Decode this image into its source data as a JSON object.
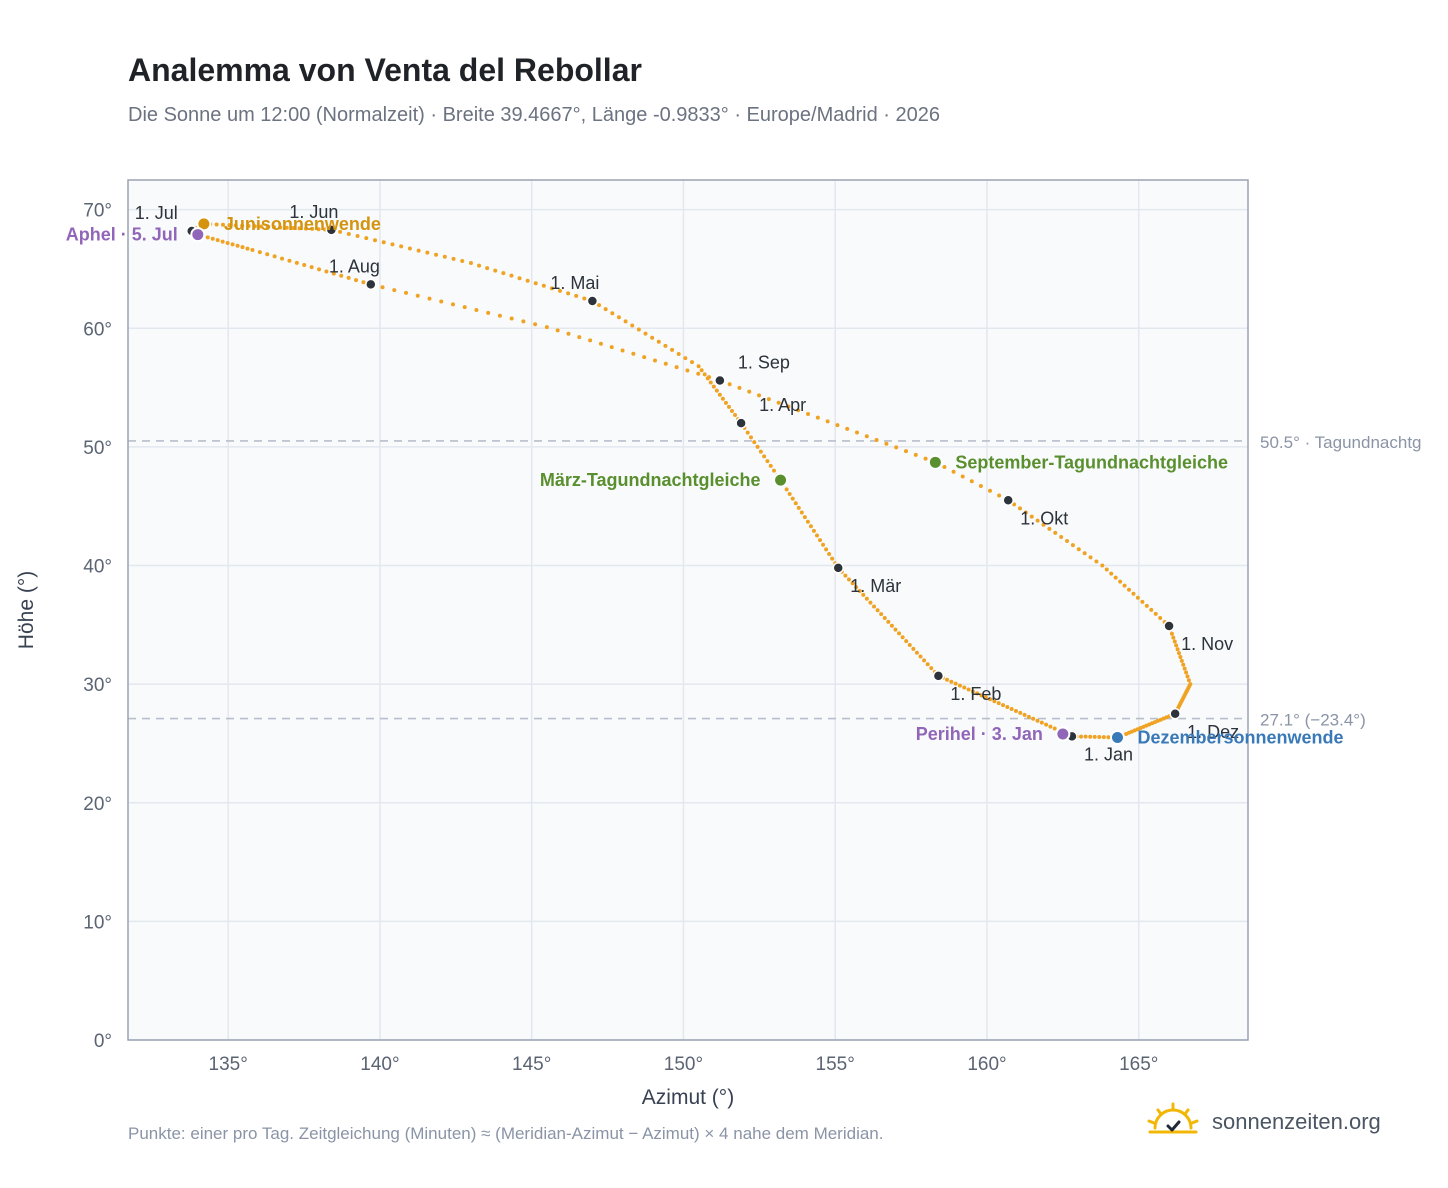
{
  "title": "Analemma von Venta del Rebollar",
  "subtitle": "Die Sonne um 12:00 (Normalzeit) · Breite 39.4667°, Länge -0.9833° · Europe/Madrid · 2026",
  "footnote": "Punkte: einer pro Tag. Zeitgleichung (Minuten) ≈ (Meridian-Azimut − Azimut) × 4 nahe dem Meridian.",
  "brand": {
    "text": "sonnenzeiten.org",
    "icon": "sun-logo-icon",
    "color": "#f2b705"
  },
  "chart_data": {
    "type": "scatter",
    "xlabel": "Azimut (°)",
    "ylabel": "Höhe (°)",
    "xlim": [
      131.7,
      168.6
    ],
    "ylim": [
      0,
      72.5
    ],
    "xticks": [
      135,
      140,
      145,
      150,
      155,
      160,
      165
    ],
    "xtick_labels": [
      "135°",
      "140°",
      "145°",
      "150°",
      "155°",
      "160°",
      "165°"
    ],
    "yticks": [
      0,
      10,
      20,
      30,
      40,
      50,
      60,
      70
    ],
    "ytick_labels": [
      "0°",
      "10°",
      "20°",
      "30°",
      "40°",
      "50°",
      "60°",
      "70°"
    ],
    "grid": true,
    "colors": {
      "path": "#f0a323",
      "month_marker": "#2d333b",
      "equinox": "#5a8f2e",
      "june_solstice": "#d4940f",
      "december_solstice": "#3a79b8",
      "apsis": "#9166b8",
      "reference_line": "#b8bfca",
      "plot_background": "#f8fafc",
      "grid": "#e3e8ef"
    },
    "anchors": [
      {
        "day": 1,
        "x": 162.8,
        "y": 25.6
      },
      {
        "day": 32,
        "x": 158.4,
        "y": 30.7
      },
      {
        "day": 60,
        "x": 155.1,
        "y": 39.8
      },
      {
        "day": 79,
        "x": 153.2,
        "y": 47.2
      },
      {
        "day": 91,
        "x": 151.9,
        "y": 52.0
      },
      {
        "day": 105,
        "x": 150.5,
        "y": 56.8
      },
      {
        "day": 121,
        "x": 147.0,
        "y": 62.3
      },
      {
        "day": 136,
        "x": 143.0,
        "y": 65.5
      },
      {
        "day": 152,
        "x": 138.4,
        "y": 68.3
      },
      {
        "day": 172,
        "x": 134.2,
        "y": 68.8
      },
      {
        "day": 182,
        "x": 133.8,
        "y": 68.2
      },
      {
        "day": 186,
        "x": 134.0,
        "y": 67.9
      },
      {
        "day": 197,
        "x": 135.8,
        "y": 66.6
      },
      {
        "day": 213,
        "x": 139.7,
        "y": 63.7
      },
      {
        "day": 228,
        "x": 145.5,
        "y": 60.1
      },
      {
        "day": 244,
        "x": 151.2,
        "y": 55.6
      },
      {
        "day": 266,
        "x": 158.3,
        "y": 48.7
      },
      {
        "day": 274,
        "x": 160.7,
        "y": 45.5
      },
      {
        "day": 290,
        "x": 163.8,
        "y": 40.0
      },
      {
        "day": 305,
        "x": 166.0,
        "y": 34.9
      },
      {
        "day": 320,
        "x": 166.7,
        "y": 30.0
      },
      {
        "day": 335,
        "x": 166.2,
        "y": 27.5
      },
      {
        "day": 355,
        "x": 164.3,
        "y": 25.5
      },
      {
        "day": 365,
        "x": 162.8,
        "y": 25.6
      }
    ],
    "month_markers": [
      {
        "label": "1. Jan",
        "x": 162.8,
        "y": 25.6,
        "pos": "below-right"
      },
      {
        "label": "1. Feb",
        "x": 158.4,
        "y": 30.7,
        "pos": "below-right"
      },
      {
        "label": "1. Mär",
        "x": 155.1,
        "y": 39.8,
        "pos": "below-right"
      },
      {
        "label": "1. Apr",
        "x": 151.9,
        "y": 52.0,
        "pos": "above-right"
      },
      {
        "label": "1. Mai",
        "x": 147.0,
        "y": 62.3,
        "pos": "above-left"
      },
      {
        "label": "1. Jun",
        "x": 138.4,
        "y": 68.3,
        "pos": "above-left"
      },
      {
        "label": "1. Jul",
        "x": 133.8,
        "y": 68.2,
        "pos": "above-left-far"
      },
      {
        "label": "1. Aug",
        "x": 139.7,
        "y": 63.7,
        "pos": "above-left"
      },
      {
        "label": "1. Sep",
        "x": 151.2,
        "y": 55.6,
        "pos": "above-right"
      },
      {
        "label": "1. Okt",
        "x": 160.7,
        "y": 45.5,
        "pos": "below-right"
      },
      {
        "label": "1. Nov",
        "x": 166.0,
        "y": 34.9,
        "pos": "below-right"
      },
      {
        "label": "1. Dez",
        "x": 166.2,
        "y": 27.5,
        "pos": "below-right"
      }
    ],
    "events": [
      {
        "label": "März-Tagundnachtgleiche",
        "x": 153.2,
        "y": 47.2,
        "color": "#5a8f2e",
        "side": "left"
      },
      {
        "label": "September-Tagundnachtgleiche",
        "x": 158.3,
        "y": 48.7,
        "color": "#5a8f2e",
        "side": "right"
      },
      {
        "label": "Junisonnenwende",
        "x": 134.2,
        "y": 68.8,
        "color": "#d4940f",
        "side": "right"
      },
      {
        "label": "Dezembersonnenwende",
        "x": 164.3,
        "y": 25.5,
        "color": "#3a79b8",
        "side": "right"
      },
      {
        "label": "Aphel · 5. Jul",
        "x": 134.0,
        "y": 67.9,
        "color": "#9166b8",
        "side": "left"
      },
      {
        "label": "Perihel · 3. Jan",
        "x": 162.5,
        "y": 25.8,
        "color": "#9166b8",
        "side": "left"
      }
    ],
    "reference_lines": [
      {
        "y": 50.5,
        "label": "50.5° · Tagundnachtg"
      },
      {
        "y": 27.1,
        "label": "27.1° (−23.4°)"
      }
    ]
  }
}
